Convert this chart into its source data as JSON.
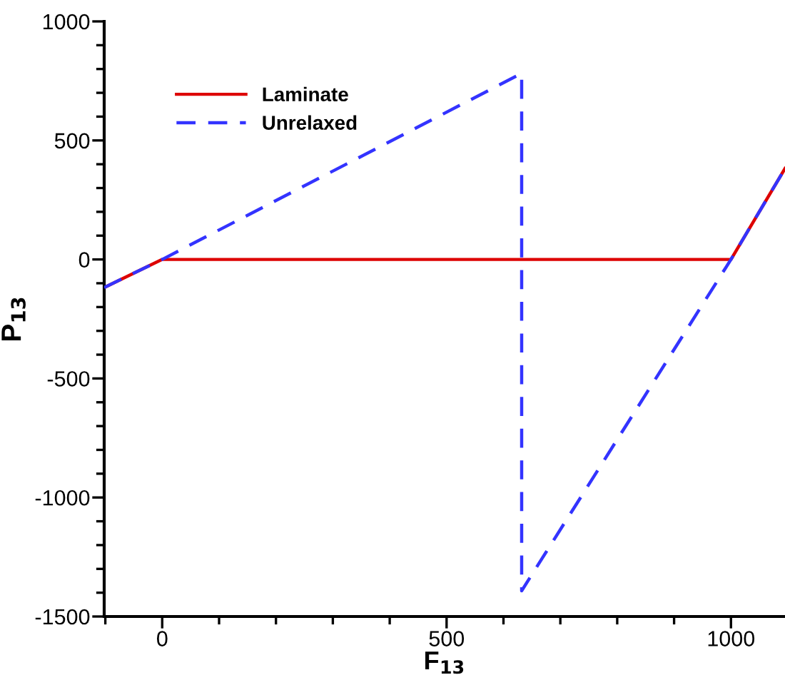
{
  "chart_data": {
    "type": "line",
    "xlabel": "F$_{13}$",
    "ylabel": "P$_{13}$",
    "xlim": [
      -102,
      1095
    ],
    "ylim": [
      -1500,
      1000
    ],
    "xticks": [
      {
        "value": -100,
        "label": null
      },
      0,
      {
        "value": 100,
        "label": null
      },
      {
        "value": 200,
        "label": null
      },
      {
        "value": 300,
        "label": null
      },
      {
        "value": 400,
        "label": null
      },
      500,
      {
        "value": 600,
        "label": null
      },
      {
        "value": 700,
        "label": null
      },
      {
        "value": 800,
        "label": null
      },
      {
        "value": 900,
        "label": null
      },
      1000
    ],
    "yticks": [
      -1500,
      {
        "value": -1400,
        "label": null
      },
      {
        "value": -1300,
        "label": null
      },
      {
        "value": -1200,
        "label": null
      },
      {
        "value": -1100,
        "label": null
      },
      -1000,
      {
        "value": -900,
        "label": null
      },
      {
        "value": -800,
        "label": null
      },
      {
        "value": -700,
        "label": null
      },
      {
        "value": -600,
        "label": null
      },
      -500,
      {
        "value": -400,
        "label": null
      },
      {
        "value": -300,
        "label": null
      },
      {
        "value": -200,
        "label": null
      },
      {
        "value": -100,
        "label": null
      },
      0,
      {
        "value": 100,
        "label": null
      },
      {
        "value": 200,
        "label": null
      },
      {
        "value": 300,
        "label": null
      },
      {
        "value": 400,
        "label": null
      },
      500,
      {
        "value": 600,
        "label": null
      },
      {
        "value": 700,
        "label": null
      },
      {
        "value": 800,
        "label": null
      },
      {
        "value": 900,
        "label": null
      },
      1000
    ],
    "grid": false,
    "legend": "top left",
    "marker": "none",
    "series": [
      {
        "name": "Laminate",
        "color": "#dd0000",
        "line_style": "solid",
        "x": [
          -102,
          0,
          1000,
          1095
        ],
        "values": [
          -118,
          0,
          0,
          382
        ]
      },
      {
        "name": "Unrelaxed",
        "color": "#3333ff",
        "line_style": "dashed",
        "x": [
          -102,
          0,
          632,
          632,
          1000,
          1095
        ],
        "values": [
          -118,
          0,
          782,
          -1392,
          0,
          382
        ]
      }
    ]
  }
}
